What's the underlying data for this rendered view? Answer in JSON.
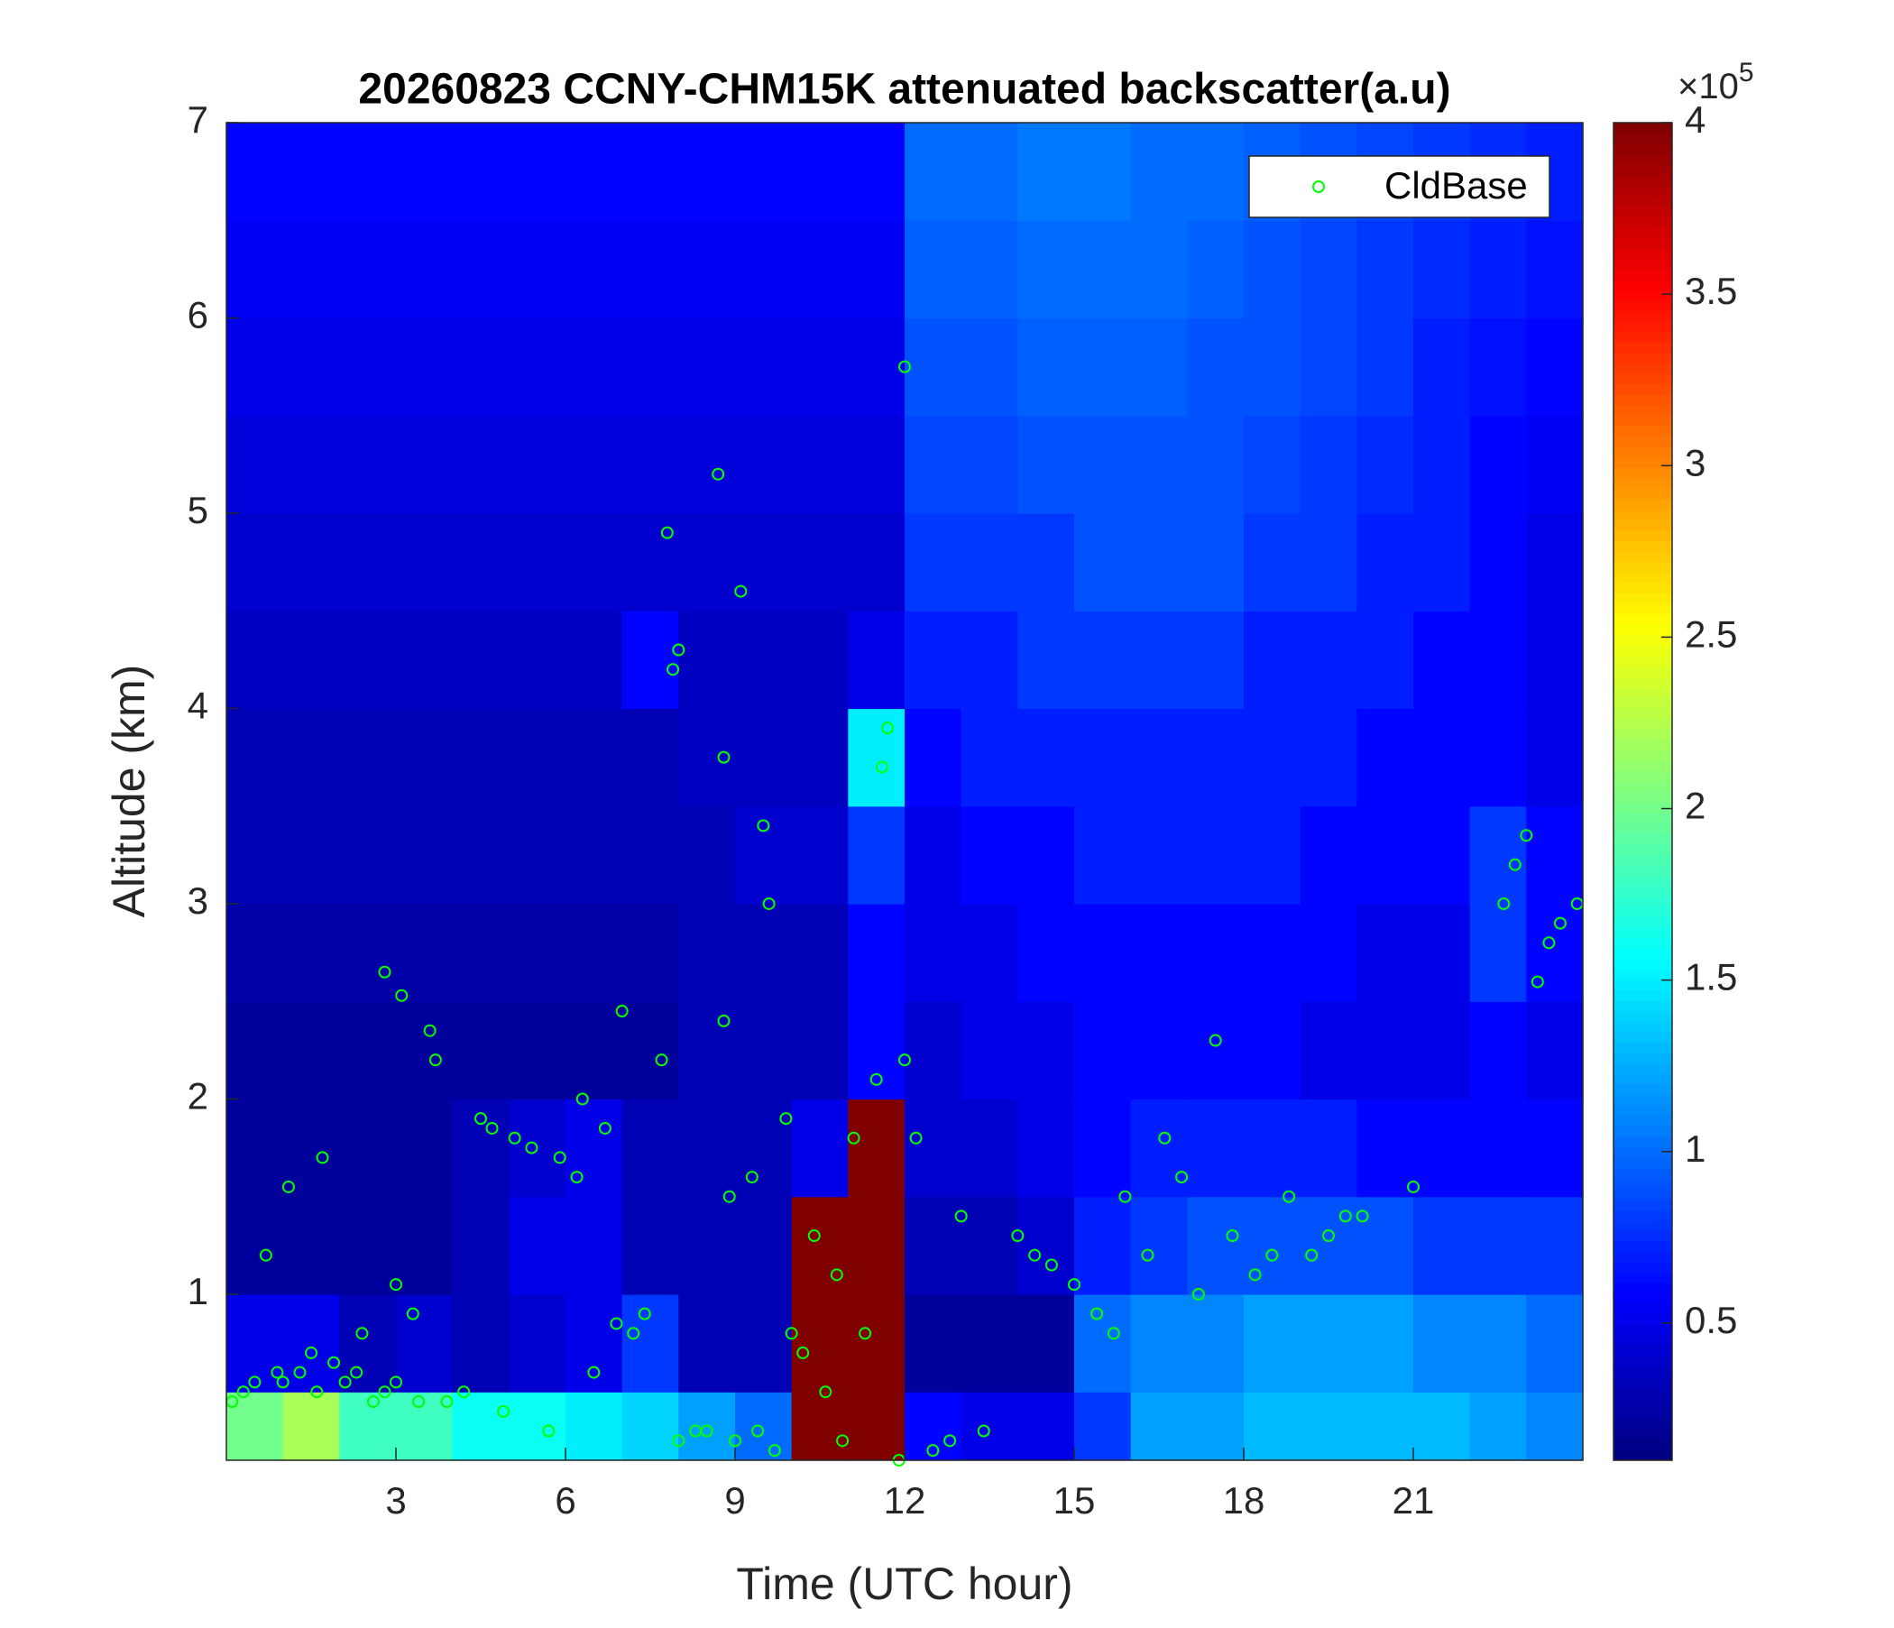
{
  "chart_data": {
    "type": "heatmap",
    "title": "20260823 CCNY-CHM15K attenuated backscatter(a.u)",
    "x_label": "Time (UTC hour)",
    "y_label": "Altitude (km)",
    "xlim": [
      0,
      24
    ],
    "xticks": [
      3,
      6,
      9,
      12,
      15,
      18,
      21
    ],
    "ylim": [
      0.15,
      7
    ],
    "yticks": [
      1,
      2,
      3,
      4,
      5,
      6,
      7
    ],
    "x_edges": [
      0,
      1,
      2,
      3,
      4,
      5,
      6,
      7,
      8,
      9,
      10,
      11,
      12,
      13,
      14,
      15,
      16,
      17,
      18,
      19,
      20,
      21,
      22,
      23,
      24
    ],
    "y_edges": [
      0.15,
      0.5,
      1,
      1.5,
      2,
      2.5,
      3,
      3.5,
      4,
      4.5,
      5,
      5.5,
      6,
      6.5,
      7
    ],
    "z": [
      [
        2.0,
        2.2,
        1.8,
        1.8,
        1.6,
        1.6,
        1.5,
        1.4,
        1.2,
        1.0,
        4,
        4,
        0.6,
        0.5,
        0.5,
        0.8,
        1.2,
        1.2,
        1.3,
        1.3,
        1.3,
        1.3,
        1.2,
        1.1
      ],
      [
        0.5,
        0.5,
        0.3,
        0.4,
        0.3,
        0.4,
        0.5,
        0.8,
        0.3,
        0.3,
        4,
        4,
        0.2,
        0.2,
        0.2,
        1.0,
        1.1,
        1.1,
        1.2,
        1.2,
        1.2,
        1.1,
        1.1,
        1.0
      ],
      [
        0.2,
        0.2,
        0.2,
        0.2,
        0.3,
        0.5,
        0.5,
        0.3,
        0.3,
        0.3,
        4,
        4,
        0.3,
        0.3,
        0.4,
        0.7,
        0.8,
        0.9,
        0.9,
        0.9,
        0.9,
        0.8,
        0.8,
        0.8
      ],
      [
        0.2,
        0.2,
        0.2,
        0.2,
        0.3,
        0.4,
        0.5,
        0.3,
        0.3,
        0.3,
        0.5,
        4,
        0.4,
        0.4,
        0.5,
        0.6,
        0.7,
        0.7,
        0.7,
        0.7,
        0.6,
        0.6,
        0.6,
        0.6
      ],
      [
        0.2,
        0.2,
        0.2,
        0.2,
        0.2,
        0.2,
        0.2,
        0.2,
        0.3,
        0.3,
        0.3,
        0.6,
        0.4,
        0.5,
        0.5,
        0.6,
        0.6,
        0.6,
        0.6,
        0.5,
        0.5,
        0.5,
        0.6,
        0.5
      ],
      [
        0.25,
        0.25,
        0.25,
        0.25,
        0.25,
        0.25,
        0.25,
        0.25,
        0.3,
        0.3,
        0.3,
        0.6,
        0.5,
        0.5,
        0.6,
        0.6,
        0.6,
        0.6,
        0.6,
        0.6,
        0.5,
        0.5,
        0.8,
        0.6
      ],
      [
        0.3,
        0.3,
        0.3,
        0.3,
        0.3,
        0.3,
        0.3,
        0.3,
        0.3,
        0.4,
        0.4,
        0.8,
        0.5,
        0.6,
        0.6,
        0.7,
        0.7,
        0.7,
        0.7,
        0.6,
        0.6,
        0.6,
        0.8,
        0.6
      ],
      [
        0.3,
        0.3,
        0.3,
        0.3,
        0.3,
        0.3,
        0.3,
        0.3,
        0.35,
        0.35,
        0.35,
        1.5,
        0.6,
        0.7,
        0.7,
        0.7,
        0.7,
        0.7,
        0.7,
        0.7,
        0.6,
        0.6,
        0.6,
        0.5
      ],
      [
        0.35,
        0.35,
        0.35,
        0.35,
        0.35,
        0.35,
        0.35,
        0.6,
        0.35,
        0.35,
        0.35,
        0.5,
        0.7,
        0.7,
        0.8,
        0.8,
        0.8,
        0.8,
        0.7,
        0.7,
        0.7,
        0.6,
        0.6,
        0.5
      ],
      [
        0.4,
        0.4,
        0.4,
        0.4,
        0.4,
        0.4,
        0.4,
        0.4,
        0.4,
        0.4,
        0.4,
        0.4,
        0.8,
        0.8,
        0.8,
        0.9,
        0.9,
        0.9,
        0.8,
        0.8,
        0.7,
        0.7,
        0.6,
        0.5
      ],
      [
        0.45,
        0.45,
        0.45,
        0.45,
        0.45,
        0.45,
        0.45,
        0.45,
        0.45,
        0.45,
        0.45,
        0.45,
        0.85,
        0.85,
        0.9,
        0.9,
        0.9,
        0.9,
        0.85,
        0.8,
        0.75,
        0.7,
        0.6,
        0.55
      ],
      [
        0.5,
        0.5,
        0.5,
        0.5,
        0.5,
        0.5,
        0.5,
        0.5,
        0.5,
        0.5,
        0.5,
        0.5,
        0.9,
        0.9,
        0.95,
        0.95,
        0.95,
        0.9,
        0.9,
        0.85,
        0.8,
        0.7,
        0.65,
        0.6
      ],
      [
        0.55,
        0.55,
        0.55,
        0.55,
        0.55,
        0.55,
        0.55,
        0.55,
        0.55,
        0.55,
        0.55,
        0.55,
        0.95,
        0.95,
        1.0,
        1.0,
        1.0,
        0.95,
        0.9,
        0.85,
        0.8,
        0.75,
        0.7,
        0.65
      ],
      [
        0.6,
        0.6,
        0.6,
        0.6,
        0.6,
        0.6,
        0.6,
        0.6,
        0.6,
        0.6,
        0.6,
        0.6,
        1.0,
        1.0,
        1.05,
        1.05,
        1.0,
        1.0,
        0.95,
        0.9,
        0.85,
        0.8,
        0.75,
        0.7
      ]
    ],
    "clim": [
      0.1,
      4
    ],
    "cticks": [
      0.5,
      1,
      1.5,
      2,
      2.5,
      3,
      3.5,
      4
    ],
    "colorbar_multiplier": {
      "base": "×10",
      "exponent": "5"
    },
    "colormap": "jet",
    "legend": "upper right",
    "series": [
      {
        "name": "CldBase",
        "color": "#00ff00",
        "x": [
          0.1,
          0.3,
          0.5,
          0.7,
          0.9,
          1.0,
          1.1,
          1.3,
          1.5,
          1.6,
          1.7,
          1.9,
          2.1,
          2.3,
          2.4,
          2.6,
          2.8,
          2.8,
          3.0,
          3.0,
          3.1,
          3.3,
          3.4,
          3.6,
          3.7,
          3.9,
          4.2,
          4.5,
          4.7,
          4.9,
          5.1,
          5.4,
          5.7,
          5.9,
          6.2,
          6.3,
          6.5,
          6.7,
          6.9,
          7.0,
          7.2,
          7.4,
          7.7,
          7.8,
          7.9,
          8.0,
          8.0,
          8.3,
          8.5,
          8.7,
          8.8,
          8.9,
          8.8,
          9.0,
          9.1,
          9.3,
          9.4,
          9.5,
          9.6,
          9.7,
          9.9,
          10.0,
          10.2,
          10.4,
          10.6,
          10.8,
          10.9,
          11.1,
          11.3,
          11.5,
          11.6,
          11.7,
          11.9,
          12.0,
          12.0,
          12.2,
          12.5,
          12.8,
          13.0,
          13.4,
          14.0,
          14.3,
          14.6,
          15.0,
          15.4,
          15.7,
          15.9,
          16.3,
          16.6,
          16.9,
          17.2,
          17.5,
          17.8,
          18.2,
          18.5,
          18.8,
          19.2,
          19.5,
          19.8,
          20.1,
          21.0,
          22.6,
          22.8,
          23.0,
          23.2,
          23.4,
          23.6,
          23.9
        ],
        "values": [
          0.45,
          0.5,
          0.55,
          1.2,
          0.6,
          0.55,
          1.55,
          0.6,
          0.7,
          0.5,
          1.7,
          0.65,
          0.55,
          0.6,
          0.8,
          0.45,
          0.5,
          2.65,
          0.55,
          1.05,
          2.53,
          0.9,
          0.45,
          2.35,
          2.2,
          0.45,
          0.5,
          1.9,
          1.85,
          0.4,
          1.8,
          1.75,
          0.3,
          1.7,
          1.6,
          2.0,
          0.6,
          1.85,
          0.85,
          2.45,
          0.8,
          0.9,
          2.2,
          4.9,
          4.2,
          4.3,
          0.25,
          0.3,
          0.3,
          5.2,
          2.4,
          1.5,
          3.75,
          0.25,
          4.6,
          1.6,
          0.3,
          3.4,
          3.0,
          0.2,
          1.9,
          0.8,
          0.7,
          1.3,
          0.5,
          1.1,
          0.25,
          1.8,
          0.8,
          2.1,
          3.7,
          3.9,
          0.15,
          5.75,
          2.2,
          1.8,
          0.2,
          0.25,
          1.4,
          0.3,
          1.3,
          1.2,
          1.15,
          1.05,
          0.9,
          0.8,
          1.5,
          1.2,
          1.8,
          1.6,
          1.0,
          2.3,
          1.3,
          1.1,
          1.2,
          1.5,
          1.2,
          1.3,
          1.4,
          1.4,
          1.55,
          3.0,
          3.2,
          3.35,
          2.6,
          2.8,
          2.9,
          3.0
        ]
      }
    ]
  }
}
